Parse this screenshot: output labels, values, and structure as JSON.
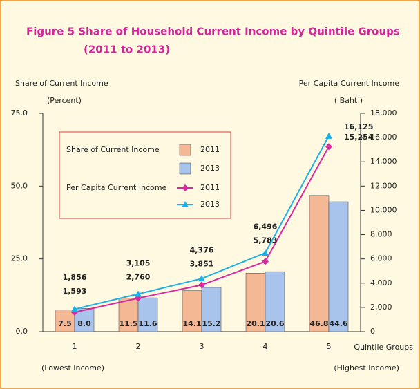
{
  "chart_data": {
    "type": "bar",
    "title": "Figure  5   Share of Household Current Income by Quintile Groups",
    "subtitle": "(2011 to 2013)",
    "ylabel": "Share of Current Income",
    "yunit": "(Percent)",
    "y2label": "Per Capita Current Income",
    "y2unit": "( Baht )",
    "xlabel": "Quintile Groups",
    "annotations": [
      "(Lowest Income)",
      "(Highest Income)"
    ],
    "legend_titles": [
      "Share of Current Income",
      "Per Capita Current Income"
    ],
    "categories": [
      "1",
      "2",
      "3",
      "4",
      "5"
    ],
    "series": [
      {
        "name": "2011",
        "type": "bar",
        "color": "#f5b894",
        "values": [
          7.5,
          11.5,
          14.1,
          20.1,
          46.8
        ],
        "value_labels": [
          "7.5",
          "11.5",
          "14.1",
          "20.1",
          "46.8"
        ]
      },
      {
        "name": "2013",
        "type": "bar",
        "color": "#a8c4ec",
        "values": [
          8.0,
          11.6,
          15.2,
          20.6,
          44.6
        ],
        "value_labels": [
          "8.0",
          "11.6",
          "15.2",
          "20.6",
          "44.6"
        ]
      },
      {
        "name": "2011",
        "type": "line",
        "axis": "y2",
        "marker": "diamond",
        "color": "#d62a9e",
        "values": [
          1593,
          2760,
          3851,
          5783,
          15254
        ],
        "value_labels": [
          "1,593",
          "2,760",
          "3,851",
          "5,783",
          "15,254"
        ]
      },
      {
        "name": "2013",
        "type": "line",
        "axis": "y2",
        "marker": "triangle",
        "color": "#1bb0e8",
        "values": [
          1856,
          3105,
          4376,
          6496,
          16125
        ],
        "value_labels": [
          "1,856",
          "3,105",
          "4,376",
          "6,496",
          "16,125"
        ]
      }
    ],
    "ylim": [
      0,
      75
    ],
    "yticks": [
      {
        "value": 0,
        "label": "0.0"
      },
      {
        "value": 25,
        "label": "25.0"
      },
      {
        "value": 50,
        "label": "50.0"
      },
      {
        "value": 75,
        "label": "75.0"
      }
    ],
    "y2lim": [
      0,
      18000
    ],
    "y2ticks": [
      0,
      {
        "value": 2000,
        "label": "2,000"
      },
      {
        "value": 4000,
        "label": "4,000"
      },
      {
        "value": 6000,
        "label": "6,000"
      },
      {
        "value": 8000,
        "label": "8,000"
      },
      {
        "value": 10000,
        "label": "10,000"
      },
      {
        "value": 12000,
        "label": "12,000"
      },
      {
        "value": 14000,
        "label": "14,000"
      },
      {
        "value": 16000,
        "label": "16,000"
      },
      {
        "value": 18000,
        "label": "18,000"
      }
    ]
  }
}
